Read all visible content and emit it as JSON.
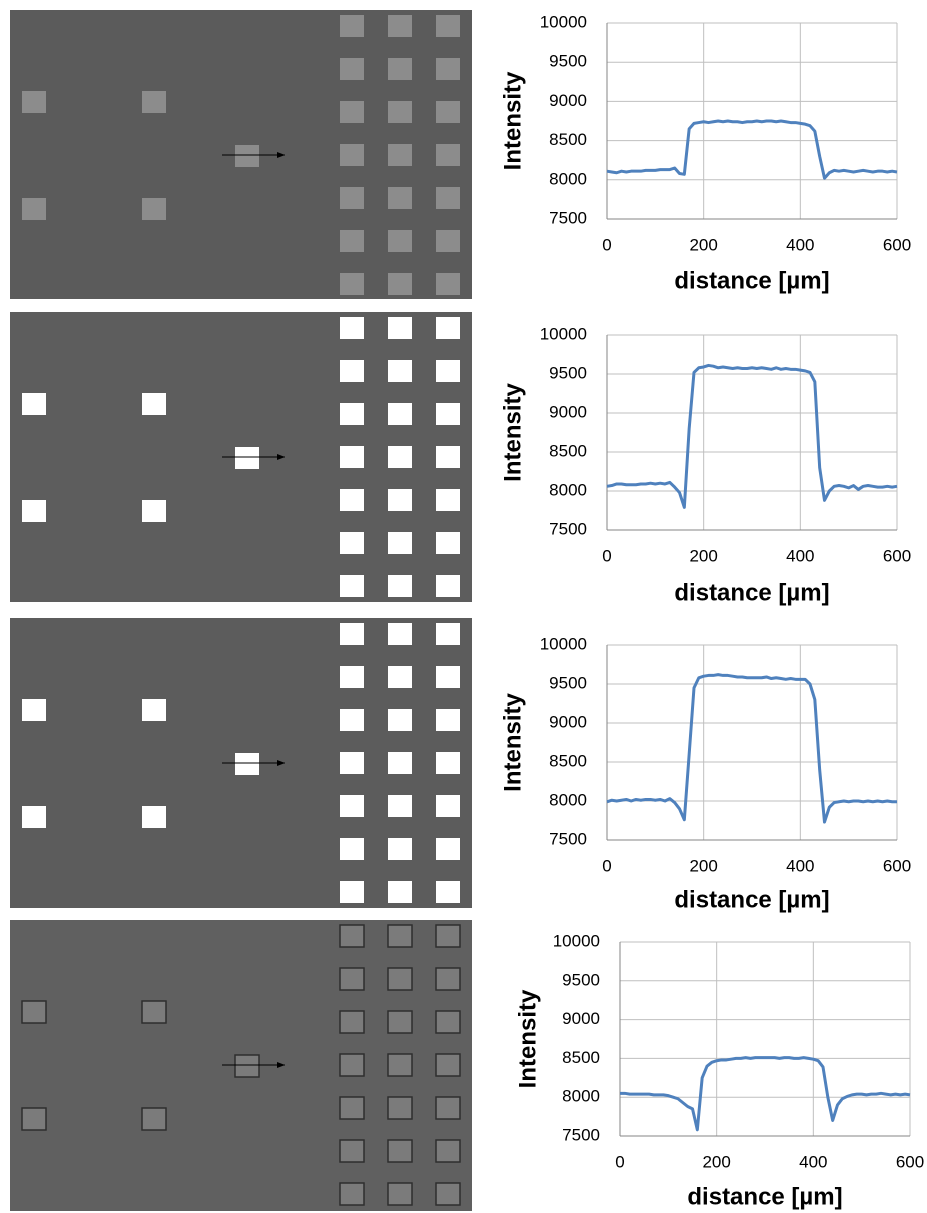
{
  "chart_data": [
    {
      "type": "line",
      "xlabel": "distance [µm]",
      "ylabel": "Intensity",
      "color": "#4f81bd",
      "grid": true,
      "x": [
        0,
        10,
        20,
        30,
        40,
        50,
        60,
        70,
        80,
        90,
        100,
        110,
        120,
        130,
        140,
        150,
        160,
        170,
        180,
        190,
        200,
        210,
        220,
        230,
        240,
        250,
        260,
        270,
        280,
        290,
        300,
        310,
        320,
        330,
        340,
        350,
        360,
        370,
        380,
        390,
        400,
        410,
        420,
        430,
        440,
        450,
        460,
        470,
        480,
        490,
        500,
        510,
        520,
        530,
        540,
        550,
        560,
        570,
        580,
        590,
        600
      ],
      "values": [
        8110,
        8100,
        8090,
        8110,
        8100,
        8110,
        8110,
        8110,
        8120,
        8120,
        8120,
        8130,
        8130,
        8130,
        8150,
        8080,
        8070,
        8650,
        8720,
        8730,
        8740,
        8730,
        8740,
        8750,
        8740,
        8750,
        8740,
        8740,
        8730,
        8740,
        8740,
        8750,
        8740,
        8750,
        8750,
        8740,
        8750,
        8740,
        8730,
        8730,
        8720,
        8710,
        8690,
        8620,
        8300,
        8020,
        8090,
        8120,
        8110,
        8120,
        8110,
        8100,
        8110,
        8120,
        8110,
        8100,
        8110,
        8110,
        8100,
        8110,
        8100
      ],
      "xlim": [
        0,
        600
      ],
      "xticks": [
        0,
        200,
        400,
        600
      ],
      "ylim": [
        7500,
        10000
      ],
      "yticks": [
        7500,
        8000,
        8500,
        9000,
        9500,
        10000
      ]
    },
    {
      "type": "line",
      "xlabel": "distance [µm]",
      "ylabel": "Intensity",
      "color": "#4f81bd",
      "grid": true,
      "x": [
        0,
        10,
        20,
        30,
        40,
        50,
        60,
        70,
        80,
        90,
        100,
        110,
        120,
        130,
        140,
        150,
        160,
        170,
        180,
        190,
        200,
        210,
        220,
        230,
        240,
        250,
        260,
        270,
        280,
        290,
        300,
        310,
        320,
        330,
        340,
        350,
        360,
        370,
        380,
        390,
        400,
        410,
        420,
        430,
        440,
        450,
        460,
        470,
        480,
        490,
        500,
        510,
        520,
        530,
        540,
        550,
        560,
        570,
        580,
        590,
        600
      ],
      "values": [
        8060,
        8070,
        8090,
        8090,
        8080,
        8080,
        8080,
        8090,
        8090,
        8100,
        8090,
        8100,
        8090,
        8110,
        8050,
        7980,
        7790,
        8800,
        9520,
        9580,
        9590,
        9610,
        9600,
        9580,
        9590,
        9580,
        9570,
        9580,
        9570,
        9570,
        9580,
        9570,
        9580,
        9570,
        9560,
        9580,
        9560,
        9570,
        9560,
        9560,
        9550,
        9540,
        9520,
        9400,
        8300,
        7880,
        8000,
        8060,
        8070,
        8060,
        8040,
        8070,
        8020,
        8060,
        8070,
        8060,
        8050,
        8050,
        8060,
        8050,
        8060
      ],
      "xlim": [
        0,
        600
      ],
      "xticks": [
        0,
        200,
        400,
        600
      ],
      "ylim": [
        7500,
        10000
      ],
      "yticks": [
        7500,
        8000,
        8500,
        9000,
        9500,
        10000
      ]
    },
    {
      "type": "line",
      "xlabel": "distance [µm]",
      "ylabel": "Intensity",
      "color": "#4f81bd",
      "grid": true,
      "x": [
        0,
        10,
        20,
        30,
        40,
        50,
        60,
        70,
        80,
        90,
        100,
        110,
        120,
        130,
        140,
        150,
        160,
        170,
        180,
        190,
        200,
        210,
        220,
        230,
        240,
        250,
        260,
        270,
        280,
        290,
        300,
        310,
        320,
        330,
        340,
        350,
        360,
        370,
        380,
        390,
        400,
        410,
        420,
        430,
        440,
        450,
        460,
        470,
        480,
        490,
        500,
        510,
        520,
        530,
        540,
        550,
        560,
        570,
        580,
        590,
        600
      ],
      "values": [
        7990,
        8010,
        8000,
        8010,
        8020,
        8000,
        8020,
        8010,
        8020,
        8020,
        8010,
        8020,
        8000,
        8030,
        7980,
        7900,
        7760,
        8600,
        9450,
        9580,
        9600,
        9610,
        9610,
        9620,
        9610,
        9610,
        9600,
        9590,
        9590,
        9580,
        9580,
        9580,
        9580,
        9590,
        9570,
        9580,
        9570,
        9560,
        9570,
        9560,
        9560,
        9560,
        9500,
        9300,
        8400,
        7730,
        7920,
        7980,
        7990,
        8000,
        7990,
        8000,
        8000,
        7990,
        8000,
        7990,
        8000,
        7990,
        8000,
        7990,
        7990
      ],
      "xlim": [
        0,
        600
      ],
      "xticks": [
        0,
        200,
        400,
        600
      ],
      "ylim": [
        7500,
        10000
      ],
      "yticks": [
        7500,
        8000,
        8500,
        9000,
        9500,
        10000
      ]
    },
    {
      "type": "line",
      "xlabel": "distance [µm]",
      "ylabel": "Intensity",
      "color": "#4f81bd",
      "grid": true,
      "x": [
        0,
        10,
        20,
        30,
        40,
        50,
        60,
        70,
        80,
        90,
        100,
        110,
        120,
        130,
        140,
        150,
        160,
        170,
        180,
        190,
        200,
        210,
        220,
        230,
        240,
        250,
        260,
        270,
        280,
        290,
        300,
        310,
        320,
        330,
        340,
        350,
        360,
        370,
        380,
        390,
        400,
        410,
        420,
        430,
        440,
        450,
        460,
        470,
        480,
        490,
        500,
        510,
        520,
        530,
        540,
        550,
        560,
        570,
        580,
        590,
        600
      ],
      "values": [
        8050,
        8050,
        8040,
        8040,
        8040,
        8040,
        8040,
        8030,
        8030,
        8030,
        8020,
        8000,
        7980,
        7930,
        7880,
        7850,
        7580,
        8250,
        8400,
        8450,
        8470,
        8480,
        8480,
        8490,
        8500,
        8500,
        8510,
        8500,
        8510,
        8510,
        8510,
        8510,
        8510,
        8500,
        8510,
        8510,
        8500,
        8500,
        8510,
        8500,
        8490,
        8470,
        8390,
        8000,
        7700,
        7900,
        7980,
        8010,
        8030,
        8040,
        8040,
        8030,
        8040,
        8040,
        8050,
        8040,
        8030,
        8040,
        8030,
        8040,
        8030
      ],
      "xlim": [
        0,
        600
      ],
      "xticks": [
        0,
        200,
        400,
        600
      ],
      "ylim": [
        7500,
        10000
      ],
      "yticks": [
        7500,
        8000,
        8500,
        9000,
        9500,
        10000
      ]
    }
  ]
}
